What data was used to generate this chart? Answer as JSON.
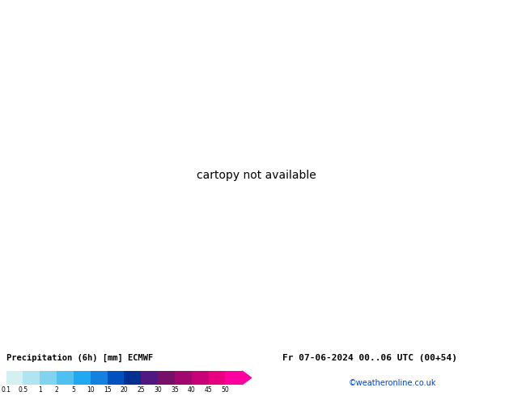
{
  "title": "Precipitation (6h) [mm] ECMWF",
  "datetime_str": "Fr 07-06-2024 00..06 UTC (00+54)",
  "credit": "©weatheronline.co.uk",
  "colorbar_levels": [
    "0.1",
    "0.5",
    "1",
    "2",
    "5",
    "10",
    "15",
    "20",
    "25",
    "30",
    "35",
    "40",
    "45",
    "50"
  ],
  "colorbar_colors_hex": [
    "#d4f0f0",
    "#b0e4f0",
    "#80d4f0",
    "#50c0f0",
    "#20a8f0",
    "#1480e0",
    "#0050c0",
    "#003090",
    "#501880",
    "#781068",
    "#a00870",
    "#c80078",
    "#e80080",
    "#ff00a0"
  ],
  "map_bg": "#c8d8e8",
  "land_color": "#c8d870",
  "fig_width": 6.34,
  "fig_height": 4.9,
  "dpi": 100,
  "lon_min": -110,
  "lon_max": 20,
  "lat_min": -60,
  "lat_max": 20
}
